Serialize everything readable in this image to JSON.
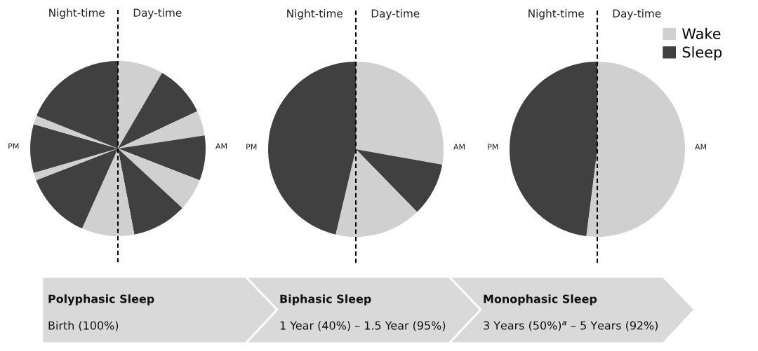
{
  "chart_data": [
    {
      "type": "pie",
      "categories": [
        null,
        null,
        null,
        null,
        null,
        null,
        null,
        null,
        null,
        null,
        null,
        null
      ],
      "values": [
        8.4,
        9.6,
        4.6,
        8.3,
        6.0,
        10.1,
        9.7,
        12.4,
        1.4,
        9.0,
        1.6,
        18.9
      ],
      "colors": [
        "#d0d0d0",
        "#404040",
        "#d0d0d0",
        "#404040",
        "#d0d0d0",
        "#404040",
        "#d0d0d0",
        "#404040",
        "#d0d0d0",
        "#404040",
        "#d0d0d0",
        "#404040"
      ],
      "annotations": [
        "Night-time",
        "Day-time",
        "PM",
        "AM",
        "Polyphasic Sleep",
        "Birth (100%)"
      ]
    },
    {
      "type": "pie",
      "categories": [
        null,
        null,
        null,
        null
      ],
      "values": [
        27.8,
        9.9,
        16.0,
        46.3
      ],
      "colors": [
        "#d0d0d0",
        "#404040",
        "#d0d0d0",
        "#404040"
      ],
      "annotations": [
        "Night-time",
        "Day-time",
        "PM",
        "AM",
        "Biphasic Sleep",
        "1 Year (40%) – 1.5 Year (95%)"
      ]
    },
    {
      "type": "pie",
      "categories": [
        "Wake",
        "Sleep"
      ],
      "values": [
        52,
        48
      ],
      "colors": [
        "#d0d0d0",
        "#404040"
      ],
      "annotations": [
        "Night-time",
        "Day-time",
        "PM",
        "AM",
        "Monophasic Sleep",
        "3 Years (50%)$^{a}$ – 5 Years (92%)"
      ],
      "legend": "top right"
    }
  ]
}
